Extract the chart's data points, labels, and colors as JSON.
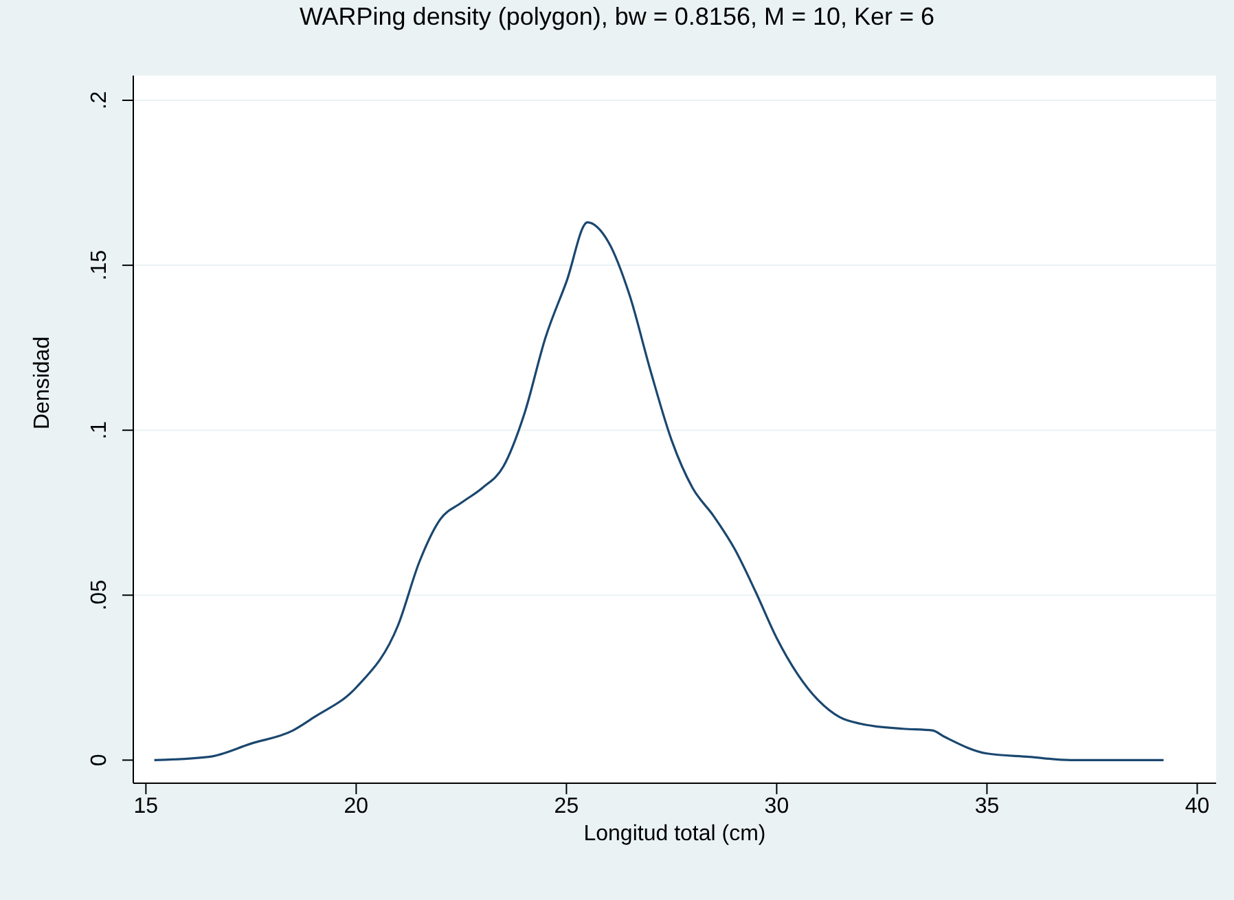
{
  "chart_data": {
    "type": "line",
    "title": "WARPing density (polygon), bw = 0.8156, M = 10, Ker = 6",
    "xlabel": "Longitud total (cm)",
    "ylabel": "Densidad",
    "series": [
      {
        "color": "#1a476f",
        "x": [
          15.2,
          16.5,
          17.5,
          18.5,
          19,
          20,
          21,
          21.5,
          22,
          22.5,
          23,
          23.5,
          24,
          24.5,
          25,
          25.5,
          26,
          26.5,
          27,
          27.5,
          28,
          28.5,
          29,
          29.5,
          30,
          30.5,
          31,
          31.5,
          32,
          33,
          33.7,
          34,
          35,
          36,
          37,
          39.2
        ],
        "values": [
          0,
          0.001,
          0.005,
          0.009,
          0.013,
          0.022,
          0.041,
          0.06,
          0.073,
          0.078,
          0.0825,
          0.089,
          0.105,
          0.128,
          0.145,
          0.163,
          0.157,
          0.141,
          0.118,
          0.097,
          0.0825,
          0.074,
          0.064,
          0.051,
          0.037,
          0.026,
          0.018,
          0.013,
          0.011,
          0.0095,
          0.009,
          0.007,
          0.002,
          0.001,
          0,
          0
        ]
      }
    ],
    "xlim": [
      14.7,
      40.45
    ],
    "xticks": [
      15,
      20,
      25,
      30,
      35,
      40
    ],
    "ylim": [
      -0.007,
      0.2075
    ],
    "yticks": [
      {
        "value": 0,
        "label": "0"
      },
      {
        "value": 0.05,
        "label": ".05"
      },
      {
        "value": 0.1,
        "label": ".1"
      },
      {
        "value": 0.15,
        "label": ".15"
      },
      {
        "value": 0.2,
        "label": ".2"
      }
    ],
    "grid": "y",
    "marker": "none",
    "line_style": "solid"
  }
}
